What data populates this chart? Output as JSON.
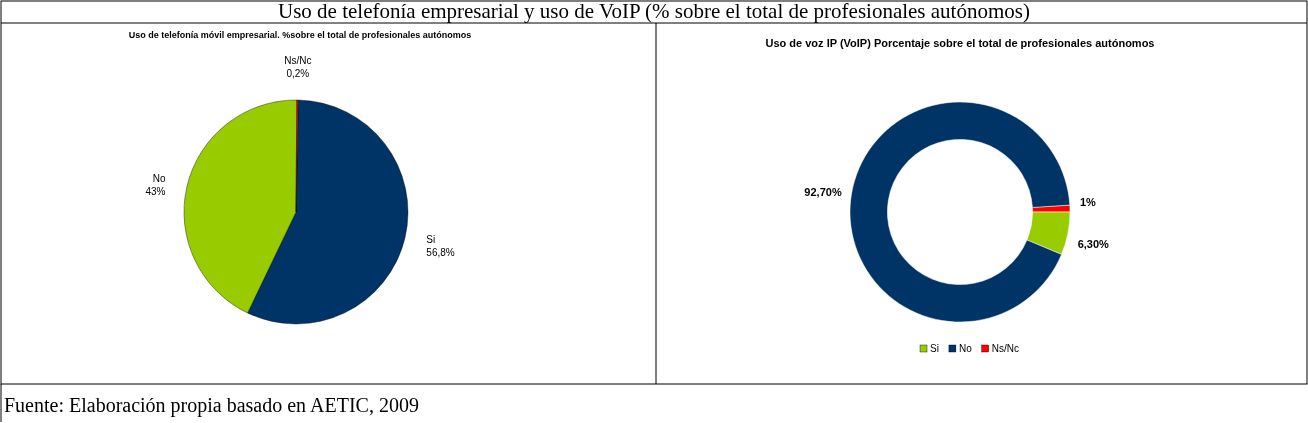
{
  "chart_data": [
    {
      "type": "other",
      "title": "Uso de telefonía empresarial y uso de VoIP (% sobre el total de profesionales autónomos)",
      "annotations": [
        "Fuente: Elaboración propia basado en AETIC, 2009"
      ]
    },
    {
      "type": "pie",
      "title": "Uso de telefonía móvil empresarial. %sobre el total de profesionales autónomos",
      "categories": [
        "Si",
        "No",
        "Ns/Nc"
      ],
      "values": [
        56.8,
        43,
        0.2
      ],
      "colors": [
        "#003366",
        "#99cc00",
        "#ff0000"
      ],
      "value_labels": [
        "56,8%",
        "43%",
        "0,2%"
      ],
      "legend": false
    },
    {
      "type": "donut",
      "title": "Uso de voz IP (VoIP) Porcentaje sobre el total de profesionales autónomos",
      "categories": [
        "Si",
        "No",
        "Ns/Nc"
      ],
      "values": [
        6.3,
        92.7,
        1
      ],
      "colors": [
        "#99cc00",
        "#003366",
        "#ff0000"
      ],
      "value_labels": [
        "6,30%",
        "92,70%",
        "1%"
      ],
      "legend": "bottom"
    }
  ]
}
